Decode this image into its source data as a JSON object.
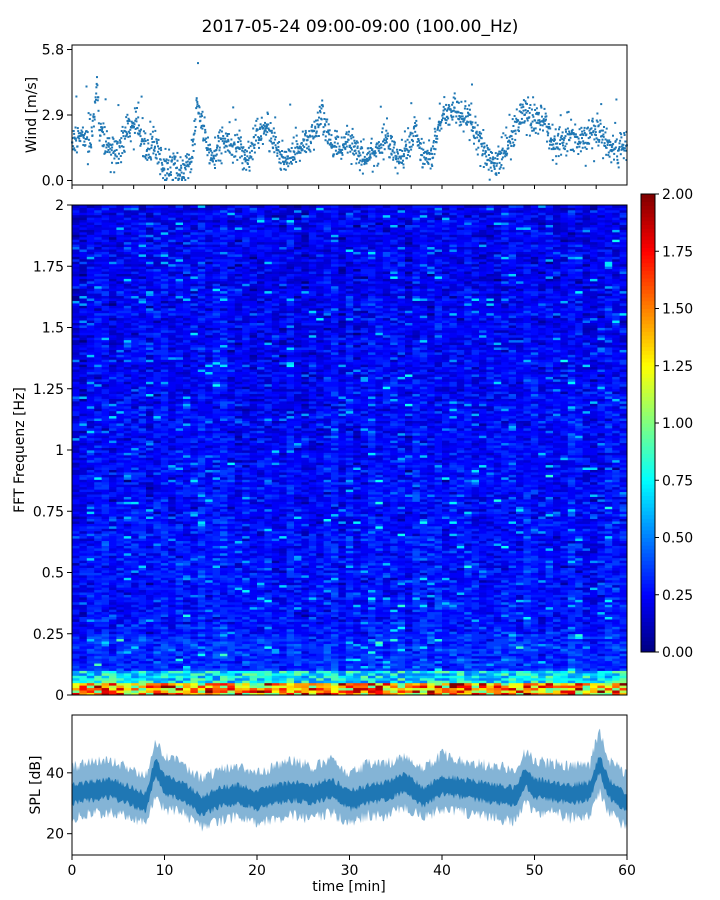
{
  "title": "2017-05-24 09:00-09:00 (100.00_Hz)",
  "chart_data": [
    {
      "type": "scatter",
      "panel": "wind",
      "ylabel": "Wind [m/s]",
      "xlabel": "",
      "xlim": [
        0,
        60
      ],
      "ylim": [
        -0.2,
        6.0
      ],
      "y_ticks": [
        "0.0",
        "2.9",
        "5.8"
      ],
      "y_tick_values": [
        0.0,
        2.9,
        5.8
      ],
      "marker_color": "#1f77b4",
      "series": [
        {
          "x": [
            0,
            1,
            2,
            2.5,
            2.7,
            3,
            4,
            5,
            6,
            7,
            8,
            9,
            10,
            11,
            12,
            13,
            13.5,
            14,
            15,
            16,
            17,
            18,
            19,
            20,
            21,
            22,
            23,
            24,
            25,
            26,
            27,
            28,
            29,
            30,
            31,
            32,
            33,
            34,
            35,
            36,
            37,
            38,
            39,
            40,
            41,
            42,
            43,
            44,
            45,
            46,
            47,
            48,
            49,
            50,
            51,
            52,
            53,
            54,
            55,
            56,
            57,
            58,
            59,
            60
          ],
          "y": [
            1.8,
            2.0,
            1.6,
            3.2,
            4.5,
            2.2,
            1.4,
            1.2,
            2.3,
            2.6,
            1.3,
            1.6,
            0.5,
            0.6,
            0.4,
            1.0,
            3.5,
            2.8,
            1.0,
            1.6,
            1.7,
            1.5,
            0.8,
            2.1,
            2.4,
            1.4,
            1.0,
            1.2,
            1.6,
            1.9,
            3.0,
            1.8,
            1.4,
            1.7,
            1.3,
            1.0,
            1.2,
            1.8,
            1.0,
            1.2,
            2.2,
            0.9,
            1.4,
            2.8,
            3.2,
            3.0,
            2.6,
            1.8,
            0.8,
            0.9,
            1.6,
            2.3,
            3.2,
            2.7,
            2.8,
            1.6,
            1.8,
            1.9,
            1.7,
            2.0,
            2.2,
            1.5,
            1.4,
            1.4
          ]
        }
      ],
      "notes": "approximately 2000 dense scatter points; values summarized by local trend"
    },
    {
      "type": "heatmap",
      "panel": "spectrogram",
      "ylabel": "FFT Frequenz [Hz]",
      "xlabel": "",
      "xlim": [
        0,
        60
      ],
      "ylim": [
        0,
        2
      ],
      "y_ticks": [
        "0",
        "0.25",
        "0.5",
        "0.75",
        "1",
        "1.25",
        "1.5",
        "1.75",
        "2"
      ],
      "y_tick_values": [
        0,
        0.25,
        0.5,
        0.75,
        1,
        1.25,
        1.5,
        1.75,
        2
      ],
      "colormap": "jet",
      "color_range": [
        0.0,
        2.0
      ],
      "colorbar_ticks": [
        "0.00",
        "0.25",
        "0.50",
        "0.75",
        "1.00",
        "1.25",
        "1.50",
        "1.75",
        "2.00"
      ],
      "colorbar_tick_values": [
        0,
        0.25,
        0.5,
        0.75,
        1.0,
        1.25,
        1.5,
        1.75,
        2.0
      ],
      "notes": "predominantly low power (0.15-0.35) across all frequencies, higher power (0.5-2.0) concentrated below 0.05 Hz"
    },
    {
      "type": "area",
      "panel": "spl",
      "ylabel": "SPL [dB]",
      "xlabel": "time [min]",
      "xlim": [
        0,
        60
      ],
      "ylim": [
        13,
        59
      ],
      "y_ticks": [
        "20",
        "40"
      ],
      "y_tick_values": [
        20,
        40
      ],
      "x_ticks": [
        "0",
        "10",
        "20",
        "30",
        "40",
        "50",
        "60"
      ],
      "x_tick_values": [
        0,
        10,
        20,
        30,
        40,
        50,
        60
      ],
      "fill_color": "#1f77b4",
      "series": [
        {
          "x": [
            0,
            2,
            4,
            6,
            8,
            9,
            10,
            12,
            14,
            16,
            18,
            20,
            22,
            24,
            26,
            28,
            30,
            32,
            34,
            36,
            38,
            40,
            42,
            44,
            46,
            48,
            49,
            50,
            52,
            54,
            56,
            57,
            58,
            60
          ],
          "y_mean": [
            33,
            34,
            35,
            33,
            30,
            42,
            36,
            34,
            29,
            32,
            33,
            31,
            33,
            34,
            33,
            35,
            31,
            33,
            34,
            37,
            32,
            36,
            35,
            34,
            33,
            32,
            39,
            35,
            34,
            33,
            34,
            43,
            35,
            30
          ],
          "y_min": [
            25,
            27,
            27,
            26,
            23,
            33,
            28,
            27,
            22,
            24,
            26,
            23,
            25,
            26,
            25,
            27,
            23,
            26,
            26,
            29,
            25,
            28,
            27,
            26,
            25,
            24,
            31,
            27,
            27,
            25,
            26,
            34,
            27,
            22
          ],
          "y_max": [
            42,
            43,
            44,
            42,
            39,
            50,
            45,
            43,
            38,
            41,
            42,
            40,
            42,
            44,
            42,
            44,
            40,
            43,
            43,
            45,
            42,
            46,
            44,
            43,
            42,
            41,
            47,
            44,
            43,
            42,
            43,
            54,
            44,
            40
          ]
        }
      ]
    }
  ]
}
